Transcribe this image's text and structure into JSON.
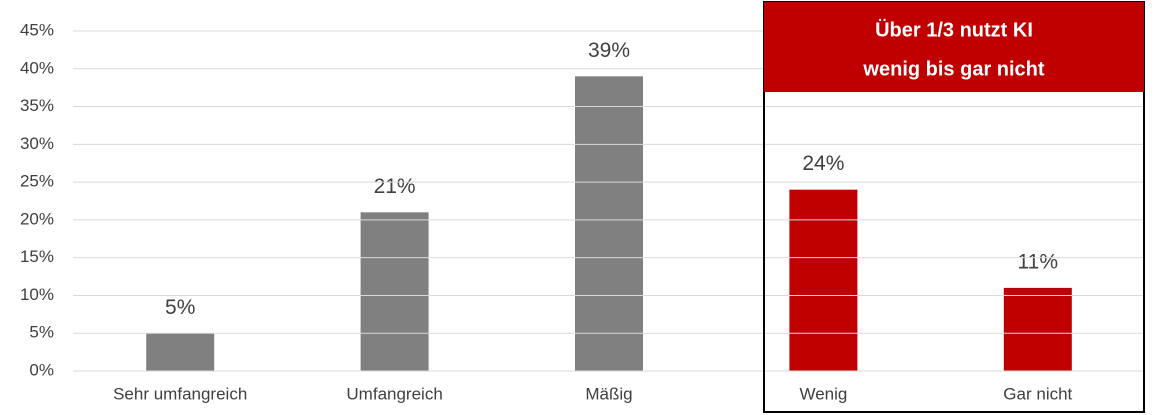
{
  "chart_data": {
    "type": "bar",
    "categories": [
      "Sehr umfangreich",
      "Umfangreich",
      "Mäßig",
      "Wenig",
      "Gar nicht"
    ],
    "values": [
      5,
      21,
      39,
      24,
      11
    ],
    "value_labels": [
      "5%",
      "21%",
      "39%",
      "24%",
      "11%"
    ],
    "colors": [
      "#808080",
      "#808080",
      "#808080",
      "#c00000",
      "#c00000"
    ],
    "ylim": [
      0,
      45
    ],
    "yticks": [
      {
        "value": 0,
        "label": "0%"
      },
      {
        "value": 5,
        "label": "5%"
      },
      {
        "value": 10,
        "label": "10%"
      },
      {
        "value": 15,
        "label": "15%"
      },
      {
        "value": 20,
        "label": "20%"
      },
      {
        "value": 25,
        "label": "25%"
      },
      {
        "value": 30,
        "label": "30%"
      },
      {
        "value": 35,
        "label": "35%"
      },
      {
        "value": 40,
        "label": "40%"
      },
      {
        "value": 45,
        "label": "45%"
      }
    ],
    "grid": true,
    "annotation": [
      "Über 1/3 nutzt KI",
      "wenig bis gar nicht"
    ]
  }
}
